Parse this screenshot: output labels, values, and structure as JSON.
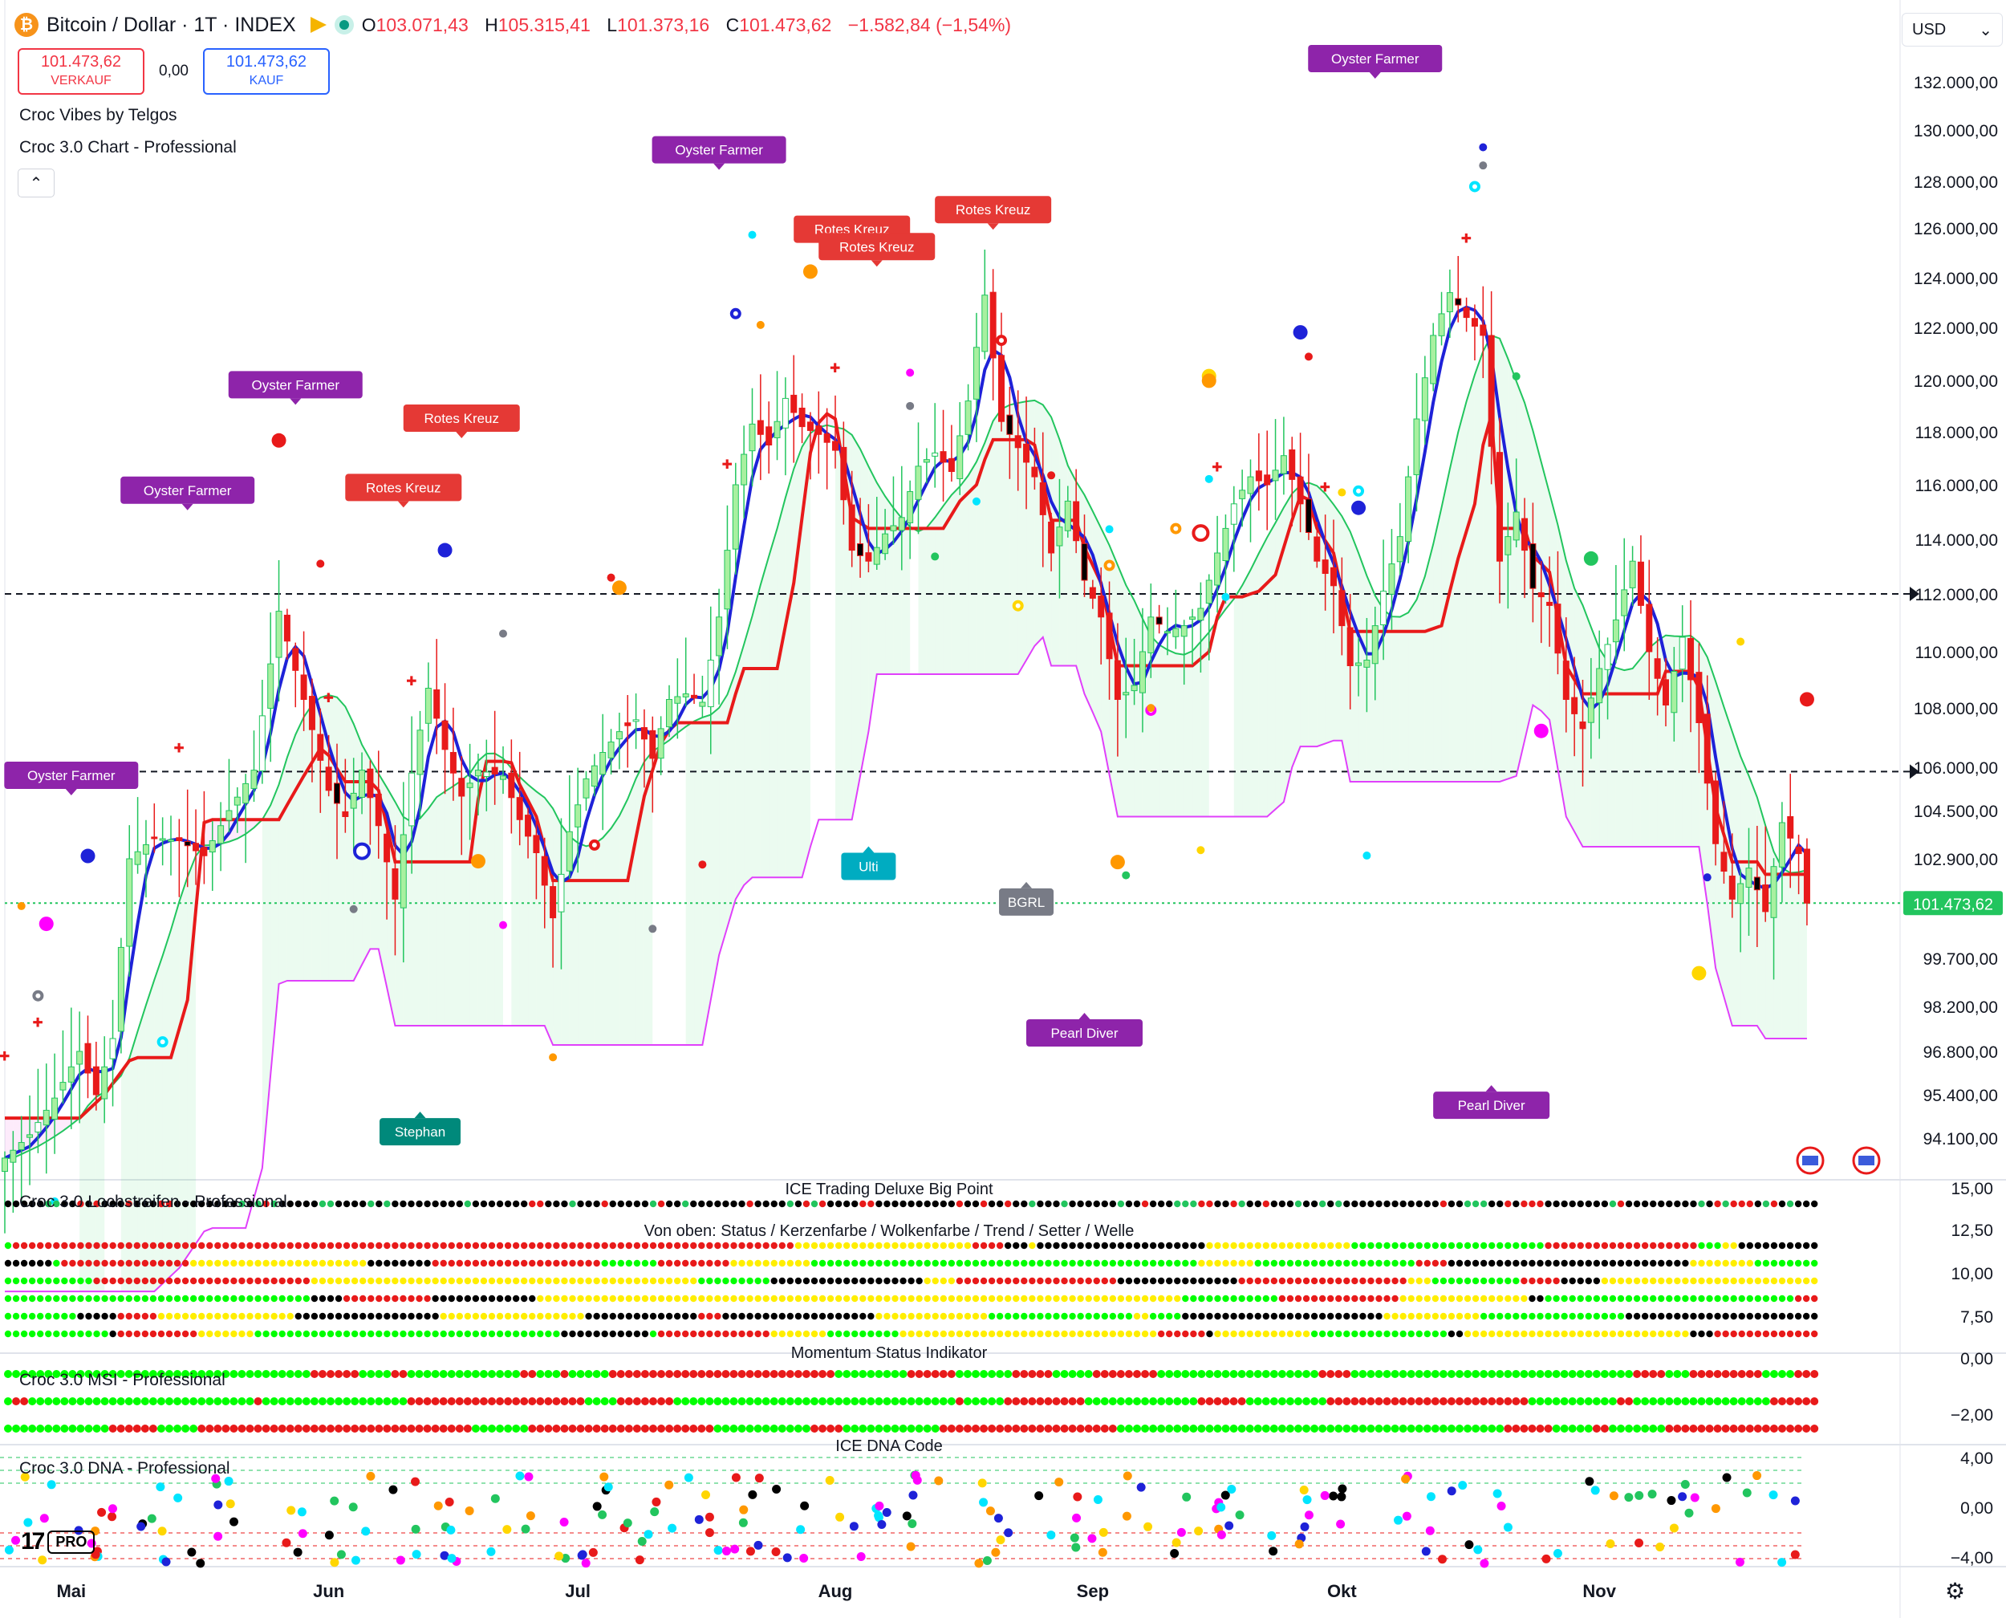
{
  "header": {
    "coin_letter": "₿",
    "title": "Bitcoin / Dollar · 1T · INDEX",
    "ohlc": [
      {
        "k": "O",
        "v": "103.071,43"
      },
      {
        "k": "H",
        "v": "105.315,41"
      },
      {
        "k": "L",
        "v": "101.373,16"
      },
      {
        "k": "C",
        "v": "101.473,62"
      },
      {
        "k": "",
        "v": "−1.582,84 (−1,54%)"
      }
    ]
  },
  "trade": {
    "sell_price": "101.473,62",
    "sell_label": "VERKAUF",
    "spread": "0,00",
    "buy_price": "101.473,62",
    "buy_label": "KAUF"
  },
  "indicators": {
    "croc_vibes": "Croc Vibes by Telgos",
    "croc_chart": "Croc 3.0 Chart - Professional",
    "collapse_glyph": "⌃",
    "lochstreifen": "Croc 3.0 Lochstreifen - Professional",
    "ice_big_point": "ICE Trading Deluxe Big Point",
    "von_oben": "Von oben: Status / Kerzenfarbe / Wolkenfarbe / Trend / Setter / Welle",
    "msi": "Croc 3.0 MSI - Professional",
    "momentum": "Momentum Status Indikator",
    "dna": "Croc 3.0 DNA - Professional",
    "ice_dna": "ICE DNA Code"
  },
  "currency": {
    "label": "USD",
    "chevron": "⌄"
  },
  "logo": {
    "tv": "17",
    "pro": "PRO"
  },
  "settings_icon": "⚙",
  "chart_data": {
    "type": "candlestick",
    "price_axis_ticks": [
      "132.000,00",
      "130.000,00",
      "128.000,00",
      "126.000,00",
      "124.000,00",
      "122.000,00",
      "120.000,00",
      "118.000,00",
      "116.000,00",
      "114.000,00",
      "112.000,00",
      "110.000,00",
      "108.000,00",
      "106.000,00",
      "104.500,00",
      "102.900,00",
      "99.700,00",
      "98.200,00",
      "96.800,00",
      "95.400,00",
      "94.100,00"
    ],
    "price_axis_values": [
      132000,
      130000,
      128000,
      126000,
      124000,
      122000,
      120000,
      118000,
      116000,
      114000,
      112000,
      110000,
      108000,
      106000,
      104500,
      102900,
      99700,
      98200,
      96800,
      95400,
      94100
    ],
    "last_price_label": "101.473,62",
    "last_price": 101473.62,
    "dashed_levels": [
      112000,
      105850
    ],
    "x_labels": [
      "Mai",
      "Jun",
      "Jul",
      "Aug",
      "Sep",
      "Okt",
      "Nov"
    ],
    "x_label_days": [
      8,
      39,
      69,
      100,
      131,
      161,
      192
    ],
    "close_path": [
      {
        "d": 0,
        "c": 93500
      },
      {
        "d": 3,
        "c": 94200
      },
      {
        "d": 6,
        "c": 95300
      },
      {
        "d": 9,
        "c": 96800
      },
      {
        "d": 11,
        "c": 95400
      },
      {
        "d": 13,
        "c": 97200
      },
      {
        "d": 15,
        "c": 102900
      },
      {
        "d": 18,
        "c": 103600
      },
      {
        "d": 21,
        "c": 103500
      },
      {
        "d": 24,
        "c": 103000
      },
      {
        "d": 27,
        "c": 104500
      },
      {
        "d": 30,
        "c": 105900
      },
      {
        "d": 33,
        "c": 111400
      },
      {
        "d": 36,
        "c": 108300
      },
      {
        "d": 39,
        "c": 105200
      },
      {
        "d": 41,
        "c": 104300
      },
      {
        "d": 43,
        "c": 105900
      },
      {
        "d": 45,
        "c": 104000
      },
      {
        "d": 47,
        "c": 101600
      },
      {
        "d": 49,
        "c": 105800
      },
      {
        "d": 51,
        "c": 108700
      },
      {
        "d": 53,
        "c": 106600
      },
      {
        "d": 55,
        "c": 105000
      },
      {
        "d": 57,
        "c": 105900
      },
      {
        "d": 60,
        "c": 105700
      },
      {
        "d": 62,
        "c": 104200
      },
      {
        "d": 64,
        "c": 103100
      },
      {
        "d": 66,
        "c": 101000
      },
      {
        "d": 68,
        "c": 103800
      },
      {
        "d": 70,
        "c": 105600
      },
      {
        "d": 72,
        "c": 106500
      },
      {
        "d": 74,
        "c": 107200
      },
      {
        "d": 76,
        "c": 107600
      },
      {
        "d": 78,
        "c": 106300
      },
      {
        "d": 80,
        "c": 108300
      },
      {
        "d": 82,
        "c": 108500
      },
      {
        "d": 84,
        "c": 108200
      },
      {
        "d": 86,
        "c": 111200
      },
      {
        "d": 88,
        "c": 116000
      },
      {
        "d": 90,
        "c": 118300
      },
      {
        "d": 92,
        "c": 117500
      },
      {
        "d": 94,
        "c": 119300
      },
      {
        "d": 96,
        "c": 118200
      },
      {
        "d": 98,
        "c": 117900
      },
      {
        "d": 100,
        "c": 117300
      },
      {
        "d": 102,
        "c": 113600
      },
      {
        "d": 104,
        "c": 113200
      },
      {
        "d": 106,
        "c": 114200
      },
      {
        "d": 108,
        "c": 114800
      },
      {
        "d": 110,
        "c": 116700
      },
      {
        "d": 112,
        "c": 117200
      },
      {
        "d": 114,
        "c": 116500
      },
      {
        "d": 116,
        "c": 119200
      },
      {
        "d": 118,
        "c": 123300
      },
      {
        "d": 120,
        "c": 118400
      },
      {
        "d": 122,
        "c": 117400
      },
      {
        "d": 124,
        "c": 116300
      },
      {
        "d": 126,
        "c": 113500
      },
      {
        "d": 128,
        "c": 115400
      },
      {
        "d": 130,
        "c": 112500
      },
      {
        "d": 132,
        "c": 111200
      },
      {
        "d": 134,
        "c": 108300
      },
      {
        "d": 136,
        "c": 108800
      },
      {
        "d": 138,
        "c": 111200
      },
      {
        "d": 140,
        "c": 110700
      },
      {
        "d": 142,
        "c": 110900
      },
      {
        "d": 144,
        "c": 111500
      },
      {
        "d": 146,
        "c": 113500
      },
      {
        "d": 148,
        "c": 115300
      },
      {
        "d": 150,
        "c": 116300
      },
      {
        "d": 152,
        "c": 116000
      },
      {
        "d": 154,
        "c": 117100
      },
      {
        "d": 156,
        "c": 115300
      },
      {
        "d": 158,
        "c": 113200
      },
      {
        "d": 160,
        "c": 112300
      },
      {
        "d": 162,
        "c": 109500
      },
      {
        "d": 164,
        "c": 109700
      },
      {
        "d": 166,
        "c": 112100
      },
      {
        "d": 168,
        "c": 114100
      },
      {
        "d": 170,
        "c": 118500
      },
      {
        "d": 172,
        "c": 121700
      },
      {
        "d": 174,
        "c": 123400
      },
      {
        "d": 176,
        "c": 122400
      },
      {
        "d": 178,
        "c": 121700
      },
      {
        "d": 180,
        "c": 113200
      },
      {
        "d": 182,
        "c": 115000
      },
      {
        "d": 184,
        "c": 112200
      },
      {
        "d": 186,
        "c": 111600
      },
      {
        "d": 188,
        "c": 108300
      },
      {
        "d": 190,
        "c": 107300
      },
      {
        "d": 192,
        "c": 109400
      },
      {
        "d": 194,
        "c": 111100
      },
      {
        "d": 196,
        "c": 113200
      },
      {
        "d": 198,
        "c": 110000
      },
      {
        "d": 200,
        "c": 108100
      },
      {
        "d": 202,
        "c": 110500
      },
      {
        "d": 204,
        "c": 107500
      },
      {
        "d": 206,
        "c": 103400
      },
      {
        "d": 208,
        "c": 101600
      },
      {
        "d": 210,
        "c": 102600
      },
      {
        "d": 212,
        "c": 101200
      },
      {
        "d": 214,
        "c": 104100
      },
      {
        "d": 216,
        "c": 103071
      },
      {
        "d": 217,
        "c": 101474
      }
    ],
    "signals": [
      {
        "text": "Oyster Farmer",
        "color": "#8e24aa",
        "day": 165,
        "price": 132400,
        "dir": "down"
      },
      {
        "text": "Oyster Farmer",
        "color": "#8e24aa",
        "day": 86,
        "price": 128700,
        "dir": "down"
      },
      {
        "text": "Oyster Farmer",
        "color": "#8e24aa",
        "day": 35,
        "price": 119300,
        "dir": "down"
      },
      {
        "text": "Oyster Farmer",
        "color": "#8e24aa",
        "day": 22,
        "price": 115300,
        "dir": "down"
      },
      {
        "text": "Oyster Farmer",
        "color": "#8e24aa",
        "day": 8,
        "price": 105250,
        "dir": "down"
      },
      {
        "text": "Rotes Kreuz",
        "color": "#e53935",
        "day": 102,
        "price": 125400,
        "dir": "down"
      },
      {
        "text": "Rotes Kreuz",
        "color": "#e53935",
        "day": 105,
        "price": 124700,
        "dir": "down"
      },
      {
        "text": "Rotes Kreuz",
        "color": "#e53935",
        "day": 119,
        "price": 126200,
        "dir": "down"
      },
      {
        "text": "Rotes Kreuz",
        "color": "#e53935",
        "day": 55,
        "price": 118000,
        "dir": "down"
      },
      {
        "text": "Rotes Kreuz",
        "color": "#e53935",
        "day": 48,
        "price": 115400,
        "dir": "down"
      },
      {
        "text": "Ulti",
        "color": "#00acc1",
        "day": 104,
        "price": 103100,
        "dir": "up"
      },
      {
        "text": "BGRL",
        "color": "#787b86",
        "day": 123,
        "price": 101950,
        "dir": "up"
      },
      {
        "text": "Stephan",
        "color": "#00897b",
        "day": 50,
        "price": 94700,
        "dir": "up"
      },
      {
        "text": "Pearl Diver",
        "color": "#8e24aa",
        "day": 130,
        "price": 97800,
        "dir": "up"
      },
      {
        "text": "Pearl Diver",
        "color": "#8e24aa",
        "day": 179,
        "price": 95500,
        "dir": "up"
      }
    ],
    "pane_ticks": {
      "ice": [
        "15,00",
        "12,50",
        "10,00",
        "7,50",
        "0,00"
      ],
      "msi": [
        "−2,00"
      ],
      "dna": [
        "4,00",
        "0,00",
        "−4,00"
      ]
    }
  }
}
